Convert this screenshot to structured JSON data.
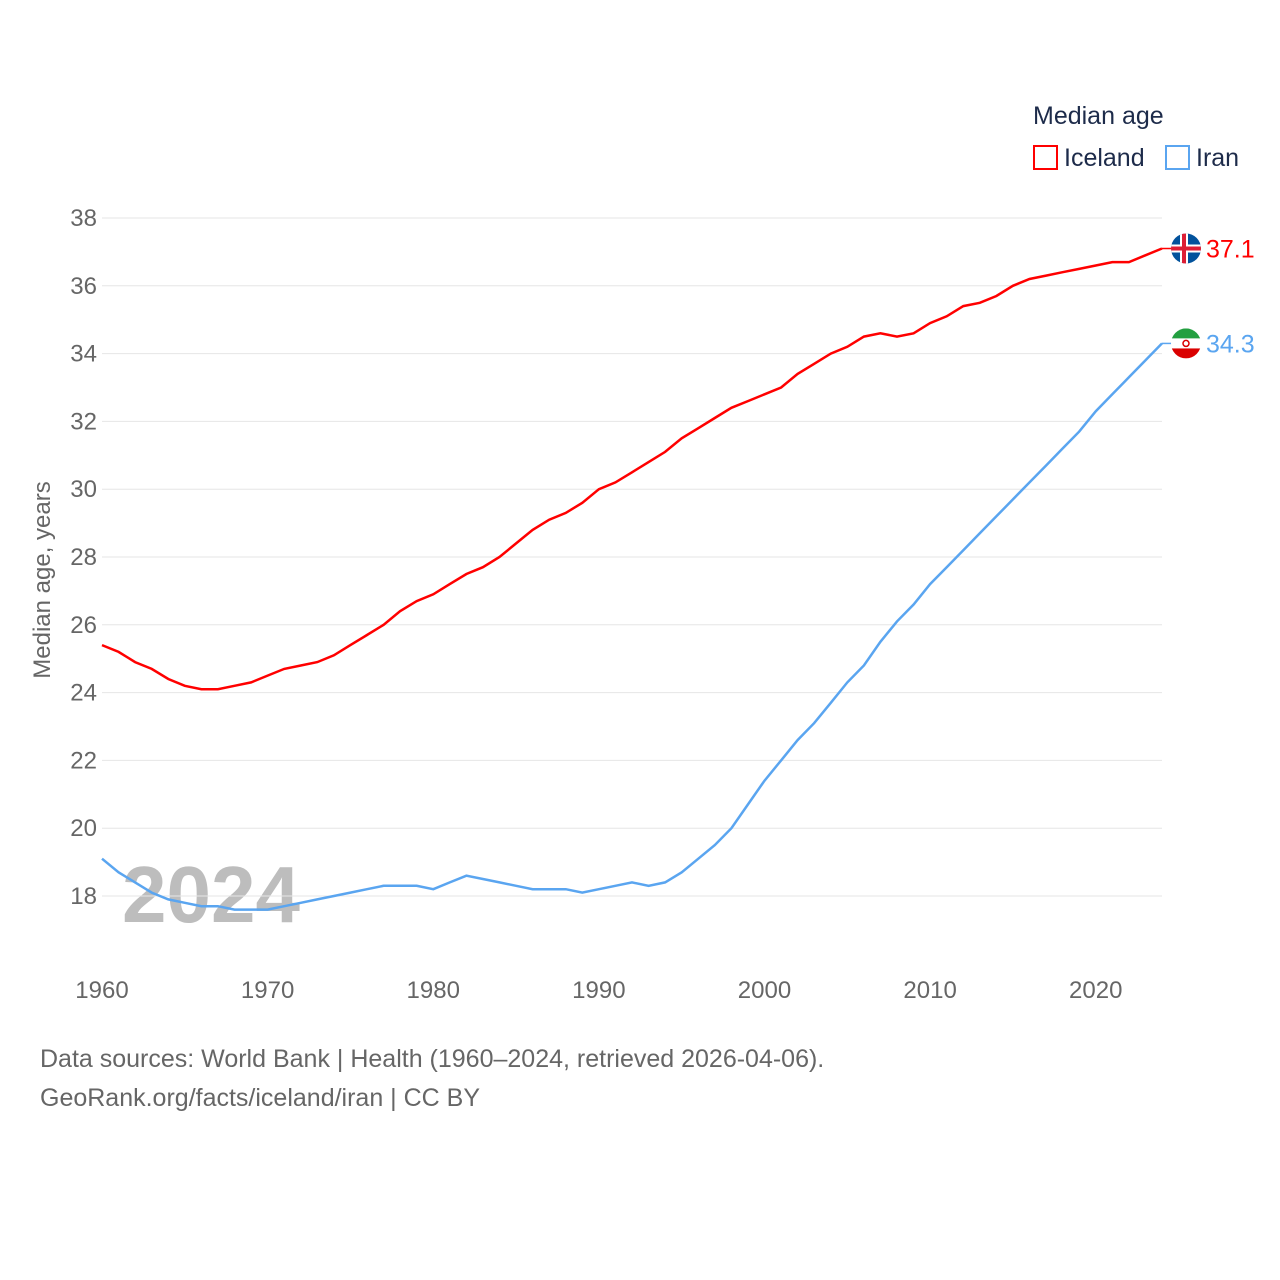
{
  "chart_data": {
    "type": "line",
    "legend_title": "Median age",
    "legend_position": "top-right",
    "ylabel": "Median age, years",
    "xlabel": "",
    "ylim": [
      16,
      38
    ],
    "xlim": [
      1960,
      2024
    ],
    "yticks": [
      18,
      20,
      22,
      24,
      26,
      28,
      30,
      32,
      34,
      36,
      38
    ],
    "xticks": [
      1960,
      1970,
      1980,
      1990,
      2000,
      2010,
      2020
    ],
    "grid": true,
    "year_watermark": "2024",
    "x": [
      1960,
      1961,
      1962,
      1963,
      1964,
      1965,
      1966,
      1967,
      1968,
      1969,
      1970,
      1971,
      1972,
      1973,
      1974,
      1975,
      1976,
      1977,
      1978,
      1979,
      1980,
      1981,
      1982,
      1983,
      1984,
      1985,
      1986,
      1987,
      1988,
      1989,
      1990,
      1991,
      1992,
      1993,
      1994,
      1995,
      1996,
      1997,
      1998,
      1999,
      2000,
      2001,
      2002,
      2003,
      2004,
      2005,
      2006,
      2007,
      2008,
      2009,
      2010,
      2011,
      2012,
      2013,
      2014,
      2015,
      2016,
      2017,
      2018,
      2019,
      2020,
      2021,
      2022,
      2023,
      2024
    ],
    "series": [
      {
        "name": "Iceland",
        "color": "#ff0000",
        "end_label": "37.1",
        "flag": "iceland-flag",
        "values": [
          25.4,
          25.2,
          24.9,
          24.7,
          24.4,
          24.2,
          24.1,
          24.1,
          24.2,
          24.3,
          24.5,
          24.7,
          24.8,
          24.9,
          25.1,
          25.4,
          25.7,
          26.0,
          26.4,
          26.7,
          26.9,
          27.2,
          27.5,
          27.7,
          28.0,
          28.4,
          28.8,
          29.1,
          29.3,
          29.6,
          30.0,
          30.2,
          30.5,
          30.8,
          31.1,
          31.5,
          31.8,
          32.1,
          32.4,
          32.6,
          32.8,
          33.0,
          33.4,
          33.7,
          34.0,
          34.2,
          34.5,
          34.6,
          34.5,
          34.6,
          34.9,
          35.1,
          35.4,
          35.5,
          35.7,
          36.0,
          36.2,
          36.3,
          36.4,
          36.5,
          36.6,
          36.7,
          36.7,
          36.9,
          37.1
        ]
      },
      {
        "name": "Iran",
        "color": "#5aa5f0",
        "end_label": "34.3",
        "flag": "iran-flag",
        "values": [
          19.1,
          18.7,
          18.4,
          18.1,
          17.9,
          17.8,
          17.7,
          17.7,
          17.6,
          17.6,
          17.6,
          17.7,
          17.8,
          17.9,
          18.0,
          18.1,
          18.2,
          18.3,
          18.3,
          18.3,
          18.2,
          18.4,
          18.6,
          18.5,
          18.4,
          18.3,
          18.2,
          18.2,
          18.2,
          18.1,
          18.2,
          18.3,
          18.4,
          18.3,
          18.4,
          18.7,
          19.1,
          19.5,
          20.0,
          20.7,
          21.4,
          22.0,
          22.6,
          23.1,
          23.7,
          24.3,
          24.8,
          25.5,
          26.1,
          26.6,
          27.2,
          27.7,
          28.2,
          28.7,
          29.2,
          29.7,
          30.2,
          30.7,
          31.2,
          31.7,
          32.3,
          32.8,
          33.3,
          33.8,
          34.3
        ]
      }
    ]
  },
  "footer": {
    "sources": "Data sources: World Bank | Health (1960–2024, retrieved 2026-04-06).",
    "credit": "GeoRank.org/facts/iceland/iran | CC BY"
  }
}
